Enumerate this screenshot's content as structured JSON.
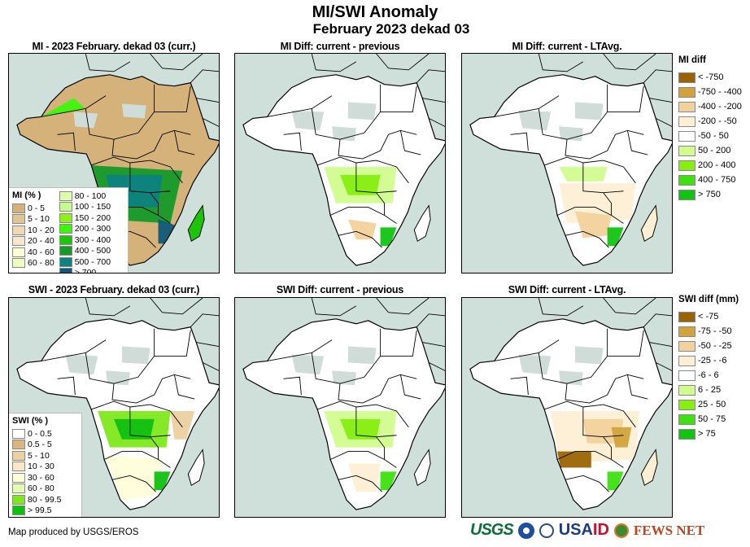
{
  "header": {
    "title": "MI/SWI Anomaly",
    "subtitle": "February 2023 dekad 03"
  },
  "panels": [
    {
      "title": "MI - 2023 February. dekad 03 (curr.)",
      "variable": "MI",
      "mode": "current"
    },
    {
      "title": "MI Diff: current - previous",
      "variable": "MI",
      "mode": "diff-previous"
    },
    {
      "title": "MI Diff: current - LTAvg.",
      "variable": "MI",
      "mode": "diff-ltavg"
    },
    {
      "title": "SWI - 2023 February. dekad 03 (curr.)",
      "variable": "SWI",
      "mode": "current"
    },
    {
      "title": "SWI Diff: current - previous",
      "variable": "SWI",
      "mode": "diff-previous"
    },
    {
      "title": "SWI Diff: current - LTAvg.",
      "variable": "SWI",
      "mode": "diff-ltavg"
    }
  ],
  "legends": {
    "mi_pct": {
      "title": "MI (% )",
      "col1": [
        {
          "label": "0 - 5",
          "color": "#d4b27a"
        },
        {
          "label": "5 - 10",
          "color": "#e2c594"
        },
        {
          "label": "10 - 20",
          "color": "#efd9b5"
        },
        {
          "label": "20 - 40",
          "color": "#f8e6cc"
        },
        {
          "label": "40 - 60",
          "color": "#fefed4"
        },
        {
          "label": "60 - 80",
          "color": "#eefdbd"
        }
      ],
      "col2": [
        {
          "label": "80 - 100",
          "color": "#dcfcb0"
        },
        {
          "label": "100 - 150",
          "color": "#c4fa8e"
        },
        {
          "label": "150 - 200",
          "color": "#8ef21a"
        },
        {
          "label": "200 - 300",
          "color": "#3ef50a"
        },
        {
          "label": "300 - 400",
          "color": "#1ec40a"
        },
        {
          "label": "400 - 500",
          "color": "#159a2a"
        },
        {
          "label": "500 - 700",
          "color": "#0e8280"
        },
        {
          "label": "> 700",
          "color": "#0e5a78"
        }
      ]
    },
    "swi_pct": {
      "title": "SWI (% )",
      "items": [
        {
          "label": "0 - 0.5",
          "color": "#ffffff"
        },
        {
          "label": "0.5 - 5",
          "color": "#d8b67c"
        },
        {
          "label": "5 - 10",
          "color": "#ecd0a0"
        },
        {
          "label": "10 - 30",
          "color": "#fbe6c8"
        },
        {
          "label": "30 - 60",
          "color": "#fefed8"
        },
        {
          "label": "60 - 80",
          "color": "#e4fcb0"
        },
        {
          "label": "80 - 99.5",
          "color": "#7ee81c"
        },
        {
          "label": "> 99.5",
          "color": "#10c010"
        }
      ]
    },
    "mi_diff": {
      "title": "MI diff",
      "items": [
        {
          "label": "< -750",
          "color": "#9a6404"
        },
        {
          "label": "-750 - -400",
          "color": "#d2a33c"
        },
        {
          "label": "-400 - -200",
          "color": "#f2d29c"
        },
        {
          "label": "-200 - -50",
          "color": "#fdefd4"
        },
        {
          "label": "-50 - 50",
          "color": "#ffffff"
        },
        {
          "label": "50 - 200",
          "color": "#d2fc8e"
        },
        {
          "label": "200 - 400",
          "color": "#86ee10"
        },
        {
          "label": "400 - 750",
          "color": "#3ee010"
        },
        {
          "label": "> 750",
          "color": "#12c412"
        }
      ]
    },
    "swi_diff": {
      "title": "SWI diff (mm)",
      "items": [
        {
          "label": "< -75",
          "color": "#9a6404"
        },
        {
          "label": "-75 - -50",
          "color": "#d2a33c"
        },
        {
          "label": "-50 - -25",
          "color": "#f2d29c"
        },
        {
          "label": "-25 - -6",
          "color": "#fdefd4"
        },
        {
          "label": "-6 - 6",
          "color": "#ffffff"
        },
        {
          "label": "6 - 25",
          "color": "#d2fc8e"
        },
        {
          "label": "25 - 50",
          "color": "#86ee10"
        },
        {
          "label": "50 - 75",
          "color": "#3ee010"
        },
        {
          "label": "> 75",
          "color": "#12c412"
        }
      ]
    }
  },
  "colors": {
    "ocean": "#cfe0da",
    "nodata": "#cfdcd8"
  },
  "footer": {
    "credit": "Map produced by USGS/EROS",
    "logos": {
      "usgs": "USGS",
      "usaid_main": "USA",
      "usaid_accent": "ID",
      "fews": "FEWS NET"
    }
  }
}
